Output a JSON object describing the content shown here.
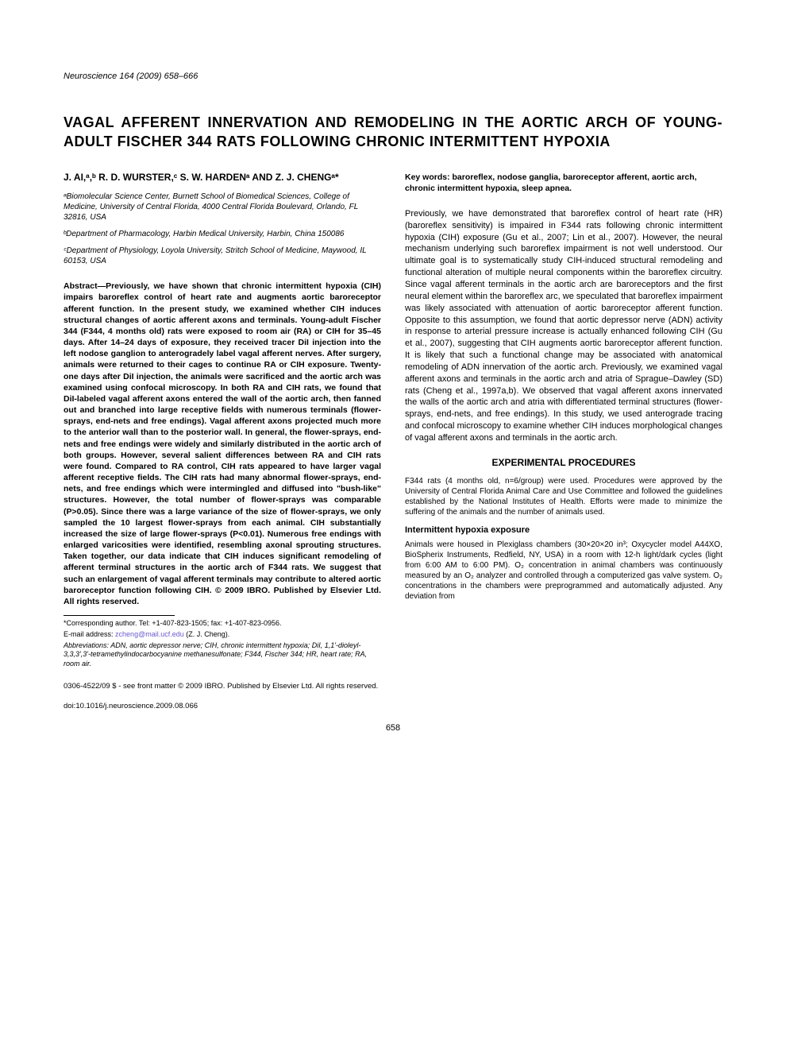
{
  "journal": {
    "name": "Neuroscience",
    "citation": "164 (2009) 658–666"
  },
  "title": "VAGAL AFFERENT INNERVATION AND REMODELING IN THE AORTIC ARCH OF YOUNG-ADULT FISCHER 344 RATS FOLLOWING CHRONIC INTERMITTENT HYPOXIA",
  "authors": "J. AI,ᵃ,ᵇ R. D. WURSTER,ᶜ S. W. HARDENᵃ AND Z. J. CHENGᵃ*",
  "affiliations": [
    "ᵃBiomolecular Science Center, Burnett School of Biomedical Sciences, College of Medicine, University of Central Florida, 4000 Central Florida Boulevard, Orlando, FL 32816, USA",
    "ᵇDepartment of Pharmacology, Harbin Medical University, Harbin, China 150086",
    "ᶜDepartment of Physiology, Loyola University, Stritch School of Medicine, Maywood, IL 60153, USA"
  ],
  "abstract": "Abstract—Previously, we have shown that chronic intermittent hypoxia (CIH) impairs baroreflex control of heart rate and augments aortic baroreceptor afferent function. In the present study, we examined whether CIH induces structural changes of aortic afferent axons and terminals. Young-adult Fischer 344 (F344, 4 months old) rats were exposed to room air (RA) or CIH for 35–45 days. After 14–24 days of exposure, they received tracer DiI injection into the left nodose ganglion to anterogradely label vagal afferent nerves. After surgery, animals were returned to their cages to continue RA or CIH exposure. Twenty-one days after DiI injection, the animals were sacrificed and the aortic arch was examined using confocal microscopy. In both RA and CIH rats, we found that DiI-labeled vagal afferent axons entered the wall of the aortic arch, then fanned out and branched into large receptive fields with numerous terminals (flower-sprays, end-nets and free endings). Vagal afferent axons projected much more to the anterior wall than to the posterior wall. In general, the flower-sprays, end-nets and free endings were widely and similarly distributed in the aortic arch of both groups. However, several salient differences between RA and CIH rats were found. Compared to RA control, CIH rats appeared to have larger vagal afferent receptive fields. The CIH rats had many abnormal flower-sprays, end-nets, and free endings which were intermingled and diffused into \"bush-like\" structures. However, the total number of flower-sprays was comparable (P>0.05). Since there was a large variance of the size of flower-sprays, we only sampled the 10 largest flower-sprays from each animal. CIH substantially increased the size of large flower-sprays (P<0.01). Numerous free endings with enlarged varicosities were identified, resembling axonal sprouting structures. Taken together, our data indicate that CIH induces significant remodeling of afferent terminal structures in the aortic arch of F344 rats. We suggest that such an enlargement of vagal afferent terminals may contribute to altered aortic baroreceptor function following CIH. © 2009 IBRO. Published by Elsevier Ltd. All rights reserved.",
  "keywords": "Key words: baroreflex, nodose ganglia, baroreceptor afferent, aortic arch, chronic intermittent hypoxia, sleep apnea.",
  "intro_paragraph": "Previously, we have demonstrated that baroreflex control of heart rate (HR) (baroreflex sensitivity) is impaired in F344 rats following chronic intermittent hypoxia (CIH) exposure (Gu et al., 2007; Lin et al., 2007). However, the neural mechanism underlying such baroreflex impairment is not well understood. Our ultimate goal is to systematically study CIH-induced structural remodeling and functional alteration of multiple neural components within the baroreflex circuitry. Since vagal afferent terminals in the aortic arch are baroreceptors and the first neural element within the baroreflex arc, we speculated that baroreflex impairment was likely associated with attenuation of aortic baroreceptor afferent function. Opposite to this assumption, we found that aortic depressor nerve (ADN) activity in response to arterial pressure increase is actually enhanced following CIH (Gu et al., 2007), suggesting that CIH augments aortic baroreceptor afferent function. It is likely that such a functional change may be associated with anatomical remodeling of ADN innervation of the aortic arch. Previously, we examined vagal afferent axons and terminals in the aortic arch and atria of Sprague–Dawley (SD) rats (Cheng et al., 1997a,b). We observed that vagal afferent axons innervated the walls of the aortic arch and atria with differentiated terminal structures (flower-sprays, end-nets, and free endings). In this study, we used anterograde tracing and confocal microscopy to examine whether CIH induces morphological changes of vagal afferent axons and terminals in the aortic arch.",
  "section_heading": "EXPERIMENTAL PROCEDURES",
  "methods_intro": "F344 rats (4 months old, n=6/group) were used. Procedures were approved by the University of Central Florida Animal Care and Use Committee and followed the guidelines established by the National Institutes of Health. Efforts were made to minimize the suffering of the animals and the number of animals used.",
  "subsection_heading": "Intermittent hypoxia exposure",
  "hypoxia_text": "Animals were housed in Plexiglass chambers (30×20×20 in³; Oxycycler model A44XO, BioSpherix Instruments, Redfield, NY, USA) in a room with 12-h light/dark cycles (light from 6:00 AM to 6:00 PM). O₂ concentration in animal chambers was continuously measured by an O₂ analyzer and controlled through a computerized gas valve system. O₂ concentrations in the chambers were preprogrammed and automatically adjusted. Any deviation from",
  "footnotes": {
    "corresponding": "*Corresponding author. Tel: +1-407-823-1505; fax: +1-407-823-0956.",
    "email_label": "E-mail address:",
    "email": "zcheng@mail.ucf.edu",
    "email_author": "(Z. J. Cheng).",
    "abbreviations": "Abbreviations: ADN, aortic depressor nerve; CIH, chronic intermittent hypoxia; DiI, 1,1'-dioleyl-3,3,3',3'-tetramethylindocarbocyanine methanesulfonate; F344, Fischer 344; HR, heart rate; RA, room air."
  },
  "copyright": "0306-4522/09 $ - see front matter © 2009 IBRO. Published by Elsevier Ltd. All rights reserved.",
  "doi": "doi:10.1016/j.neuroscience.2009.08.066",
  "page_number": "658",
  "colors": {
    "text": "#000000",
    "ref_link": "#6a5acd",
    "background": "#ffffff"
  },
  "typography": {
    "body_font": "Arial, Helvetica, sans-serif",
    "title_fontsize": 18,
    "body_fontsize": 11,
    "abstract_fontsize": 10.5,
    "footnote_fontsize": 9
  }
}
